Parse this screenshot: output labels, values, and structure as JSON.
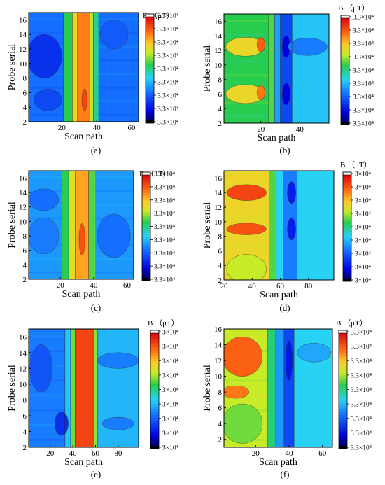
{
  "figure": {
    "caption_note": "",
    "colorbar_title": "B （μT）"
  },
  "chart_data": [
    {
      "type": "heatmap",
      "panel_label": "(a)",
      "xlabel": "Scan path",
      "ylabel": "Probe serial",
      "xlim": [
        1,
        64
      ],
      "ylim": [
        2,
        17
      ],
      "xticks": [
        20,
        40,
        60
      ],
      "yticks": [
        2,
        4,
        6,
        8,
        10,
        12,
        14,
        16
      ],
      "colorbar_title": "B （μT）",
      "colorbar_labels": [
        "3.3×10⁴",
        "3.3×10⁴",
        "3.3×10⁴",
        "3.3×10⁴",
        "3.3×10⁴",
        "3.3×10⁴",
        "3.3×10⁴",
        "3.3×10⁴",
        "3.3×10⁴"
      ],
      "base_level": 0.28,
      "bands": [
        {
          "x0": 21,
          "x1": 26,
          "level": 0.55
        },
        {
          "x0": 26,
          "x1": 29,
          "level": 0.72
        },
        {
          "x0": 29,
          "x1": 36,
          "level": 0.84
        },
        {
          "x0": 36,
          "x1": 38,
          "level": 0.66
        },
        {
          "x0": 38,
          "x1": 41,
          "level": 0.5
        }
      ],
      "spots": [
        {
          "x": 10,
          "y": 11,
          "rx": 10,
          "ry": 3,
          "level": 0.18
        },
        {
          "x": 12,
          "y": 5,
          "rx": 8,
          "ry": 1.5,
          "level": 0.22
        },
        {
          "x": 33,
          "y": 5,
          "rx": 1.5,
          "ry": 1.5,
          "level": 0.92
        },
        {
          "x": 50,
          "y": 14,
          "rx": 8,
          "ry": 2,
          "level": 0.25
        }
      ]
    },
    {
      "type": "heatmap",
      "panel_label": "(b)",
      "xlabel": "Scan path",
      "ylabel": "Probe serial",
      "xlim": [
        1,
        55
      ],
      "ylim": [
        2,
        17
      ],
      "xticks": [
        20,
        40
      ],
      "yticks": [
        2,
        4,
        6,
        8,
        10,
        12,
        14,
        16
      ],
      "colorbar_title": "B （μT）",
      "colorbar_labels": [
        "3.3×10⁴",
        "3.3×10⁴",
        "3.3×10⁴",
        "3.3×10⁴",
        "3.3×10⁴",
        "3.3×10⁴",
        "3.3×10⁴",
        "3.3×10⁴",
        "3.3×10⁴"
      ],
      "base_level": 0.55,
      "bands": [
        {
          "x0": 24,
          "x1": 27,
          "level": 0.58
        },
        {
          "x0": 27,
          "x1": 30,
          "level": 0.35
        },
        {
          "x0": 30,
          "x1": 36,
          "level": 0.22
        },
        {
          "x0": 36,
          "x1": 55,
          "level": 0.4
        }
      ],
      "spots": [
        {
          "x": 12,
          "y": 12.5,
          "rx": 10,
          "ry": 1.3,
          "level": 0.72
        },
        {
          "x": 12,
          "y": 6,
          "rx": 10,
          "ry": 1.3,
          "level": 0.72
        },
        {
          "x": 20,
          "y": 12.8,
          "rx": 2,
          "ry": 1,
          "level": 0.88
        },
        {
          "x": 20,
          "y": 6.2,
          "rx": 2,
          "ry": 1,
          "level": 0.85
        },
        {
          "x": 33,
          "y": 12.5,
          "rx": 2,
          "ry": 1.5,
          "level": 0.1
        },
        {
          "x": 33,
          "y": 6,
          "rx": 2,
          "ry": 1.5,
          "level": 0.1
        },
        {
          "x": 44,
          "y": 12.5,
          "rx": 10,
          "ry": 1.2,
          "level": 0.3
        }
      ]
    },
    {
      "type": "heatmap",
      "panel_label": "(c)",
      "xlabel": "Scan path",
      "ylabel": "Probe serial",
      "xlim": [
        1,
        64
      ],
      "ylim": [
        2,
        17
      ],
      "xticks": [
        20,
        40,
        60
      ],
      "yticks": [
        2,
        4,
        6,
        8,
        10,
        12,
        14,
        16
      ],
      "colorbar_title": "B （μT）",
      "colorbar_labels": [
        "3.3×10⁴",
        "3.3×10⁴",
        "3.3×10⁴",
        "3.3×10⁴",
        "3.3×10⁴",
        "3.3×10⁴",
        "3.3×10⁴",
        "3.3×10⁴",
        "3.3×10⁴"
      ],
      "base_level": 0.34,
      "bands": [
        {
          "x0": 21,
          "x1": 25,
          "level": 0.55
        },
        {
          "x0": 25,
          "x1": 29,
          "level": 0.7
        },
        {
          "x0": 29,
          "x1": 37,
          "level": 0.8
        },
        {
          "x0": 37,
          "x1": 41,
          "level": 0.58
        }
      ],
      "spots": [
        {
          "x": 33,
          "y": 7.5,
          "rx": 1.8,
          "ry": 2.2,
          "level": 0.9
        },
        {
          "x": 10,
          "y": 13,
          "rx": 9,
          "ry": 1.5,
          "level": 0.28
        },
        {
          "x": 10,
          "y": 8,
          "rx": 9,
          "ry": 2.5,
          "level": 0.3
        },
        {
          "x": 52,
          "y": 8,
          "rx": 10,
          "ry": 3,
          "level": 0.28
        }
      ]
    },
    {
      "type": "heatmap",
      "panel_label": "(d)",
      "xlabel": "Scan path",
      "ylabel": "Probe serial",
      "xlim": [
        20,
        98
      ],
      "ylim": [
        2,
        17
      ],
      "xticks": [
        20,
        40,
        60,
        80
      ],
      "yticks": [
        2,
        4,
        6,
        8,
        10,
        12,
        14,
        16
      ],
      "colorbar_title": "B （μT）",
      "colorbar_labels": [
        "3×10⁴",
        "3×10⁴",
        "3×10⁴",
        "3×10⁴",
        "3×10⁴",
        "3×10⁴",
        "3×10⁴",
        "3×10⁴",
        "3×10⁴"
      ],
      "base_level": 0.72,
      "bands": [
        {
          "x0": 52,
          "x1": 57,
          "level": 0.58
        },
        {
          "x0": 57,
          "x1": 62,
          "level": 0.42
        },
        {
          "x0": 62,
          "x1": 72,
          "level": 0.3
        },
        {
          "x0": 72,
          "x1": 98,
          "level": 0.42
        }
      ],
      "spots": [
        {
          "x": 36,
          "y": 14,
          "rx": 14,
          "ry": 1.1,
          "level": 0.92
        },
        {
          "x": 36,
          "y": 9,
          "rx": 14,
          "ry": 0.8,
          "level": 0.9
        },
        {
          "x": 68,
          "y": 14,
          "rx": 3,
          "ry": 1.5,
          "level": 0.15
        },
        {
          "x": 68,
          "y": 9,
          "rx": 3,
          "ry": 1.5,
          "level": 0.15
        },
        {
          "x": 36,
          "y": 3.5,
          "rx": 14,
          "ry": 2,
          "level": 0.66
        }
      ]
    },
    {
      "type": "heatmap",
      "panel_label": "(e)",
      "xlabel": "Scan path",
      "ylabel": "Probe serial",
      "xlim": [
        1,
        98
      ],
      "ylim": [
        2,
        17
      ],
      "xticks": [
        20,
        40,
        60,
        80
      ],
      "yticks": [
        2,
        4,
        6,
        8,
        10,
        12,
        14,
        16
      ],
      "colorbar_title": "B （μT）",
      "colorbar_labels": [
        "3×10⁴",
        "3×10⁴",
        "3×10⁴",
        "3×10⁴",
        "3×10⁴",
        "3×10⁴",
        "3×10⁴",
        "3×10⁴",
        "3×10⁴"
      ],
      "base_level": 0.3,
      "bands": [
        {
          "x0": 33,
          "x1": 38,
          "level": 0.4
        },
        {
          "x0": 38,
          "x1": 42,
          "level": 0.6
        },
        {
          "x0": 42,
          "x1": 58,
          "level": 0.92
        },
        {
          "x0": 58,
          "x1": 62,
          "level": 0.62
        },
        {
          "x0": 62,
          "x1": 98,
          "level": 0.38
        }
      ],
      "spots": [
        {
          "x": 30,
          "y": 5,
          "rx": 6,
          "ry": 1.5,
          "level": 0.18
        },
        {
          "x": 12,
          "y": 12,
          "rx": 10,
          "ry": 3,
          "level": 0.24
        },
        {
          "x": 80,
          "y": 13,
          "rx": 18,
          "ry": 1,
          "level": 0.3
        },
        {
          "x": 80,
          "y": 5,
          "rx": 14,
          "ry": 0.8,
          "level": 0.3
        }
      ]
    },
    {
      "type": "heatmap",
      "panel_label": "(f)",
      "xlabel": "Scan path",
      "ylabel": "Probe serial",
      "xlim": [
        1,
        66
      ],
      "ylim": [
        1,
        16
      ],
      "xticks": [
        20,
        40,
        60
      ],
      "yticks": [
        2,
        4,
        6,
        8,
        10,
        12,
        14,
        16
      ],
      "colorbar_title": "B （μT）",
      "colorbar_labels": [
        "3.3×10⁴",
        "3.3×10⁴",
        "3.3×10⁴",
        "3.3×10⁴",
        "3.3×10⁴",
        "3.3×10⁴",
        "3.3×10⁴",
        "3.3×10⁴",
        "3.3×10⁴"
      ],
      "base_level": 0.66,
      "bands": [
        {
          "x0": 27,
          "x1": 32,
          "level": 0.52
        },
        {
          "x0": 32,
          "x1": 37,
          "level": 0.34
        },
        {
          "x0": 37,
          "x1": 43,
          "level": 0.22
        },
        {
          "x0": 43,
          "x1": 66,
          "level": 0.42
        }
      ],
      "spots": [
        {
          "x": 12,
          "y": 12.5,
          "rx": 12,
          "ry": 2.5,
          "level": 0.88
        },
        {
          "x": 8,
          "y": 8,
          "rx": 8,
          "ry": 0.8,
          "level": 0.85
        },
        {
          "x": 40,
          "y": 12,
          "rx": 2,
          "ry": 2.5,
          "level": 0.14
        },
        {
          "x": 55,
          "y": 13,
          "rx": 10,
          "ry": 1.2,
          "level": 0.36
        },
        {
          "x": 12,
          "y": 4,
          "rx": 12,
          "ry": 2.5,
          "level": 0.6
        }
      ]
    }
  ]
}
